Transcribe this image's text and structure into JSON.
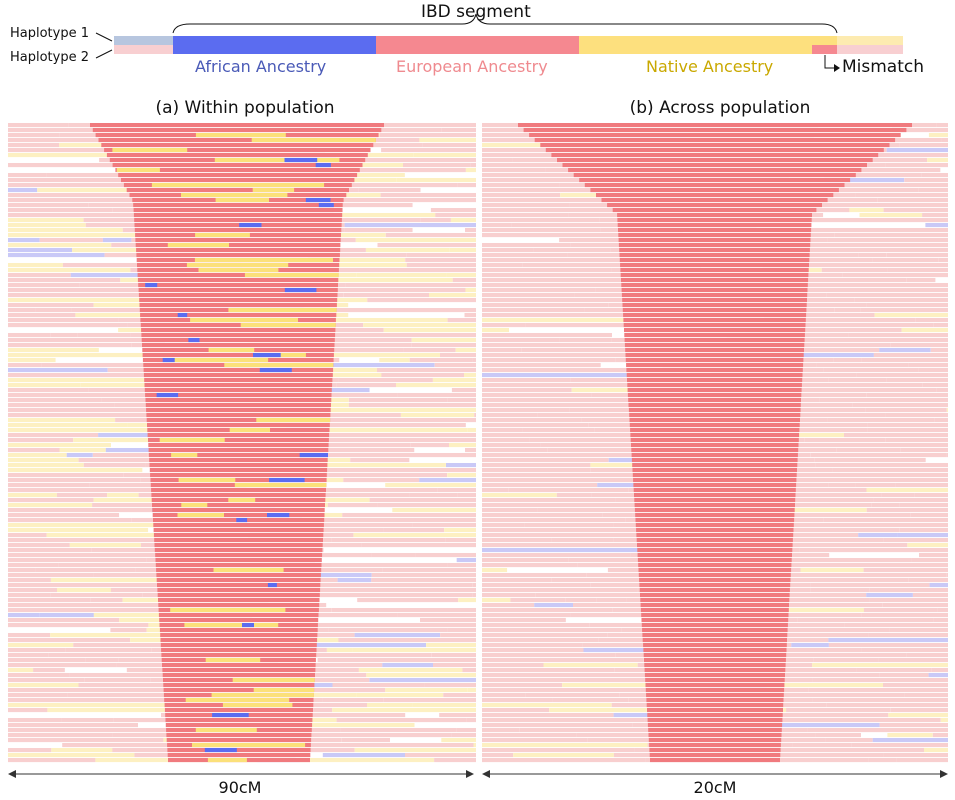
{
  "legend": {
    "haplotype1": "Haplotype 1",
    "haplotype2": "Haplotype 2",
    "ibd_segment": "IBD segment",
    "african": "African Ancestry",
    "european": "European Ancestry",
    "native": "Native Ancestry",
    "mismatch": "Mismatch"
  },
  "panels": [
    {
      "title": "(a) Within population",
      "scale": "90cM"
    },
    {
      "title": "(b) Across population",
      "scale": "20cM"
    }
  ],
  "colors": {
    "african": "#5b6cf0",
    "african_light": "#c9c9f7",
    "european": "#f07a7e",
    "european_light": "#f8cfcf",
    "native": "#fbe07a",
    "native_light": "#fdf0c2",
    "haplotype1_bg": "#b7c6df",
    "african_text": "#4a5ab7",
    "european_text": "#ef8a8f",
    "native_text": "#c9a800"
  }
}
